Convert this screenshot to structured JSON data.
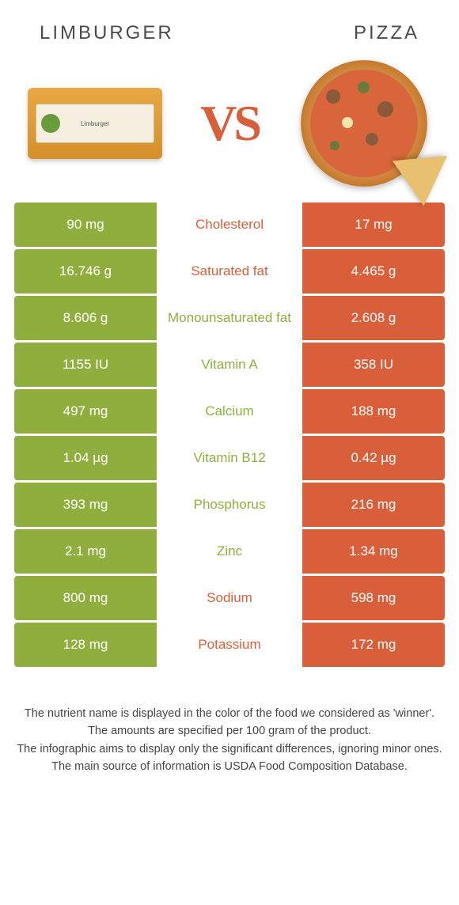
{
  "header": {
    "left_title": "LIMBURGER",
    "right_title": "PIZZA"
  },
  "hero": {
    "vs_text": "VS",
    "limburger_label": "Limburger"
  },
  "colors": {
    "green": "#8fae3e",
    "orange": "#d95f3b",
    "vs_color": "#d95f3b"
  },
  "rows": [
    {
      "nutrient": "Cholesterol",
      "left_val": "90 mg",
      "right_val": "17 mg",
      "winner": "left",
      "label_color": "#d95f3b"
    },
    {
      "nutrient": "Saturated fat",
      "left_val": "16.746 g",
      "right_val": "4.465 g",
      "winner": "left",
      "label_color": "#d95f3b"
    },
    {
      "nutrient": "Monounsaturated fat",
      "left_val": "8.606 g",
      "right_val": "2.608 g",
      "winner": "left",
      "label_color": "#8fae3e"
    },
    {
      "nutrient": "Vitamin A",
      "left_val": "1155 IU",
      "right_val": "358 IU",
      "winner": "left",
      "label_color": "#8fae3e"
    },
    {
      "nutrient": "Calcium",
      "left_val": "497 mg",
      "right_val": "188 mg",
      "winner": "left",
      "label_color": "#8fae3e"
    },
    {
      "nutrient": "Vitamin B12",
      "left_val": "1.04 µg",
      "right_val": "0.42 µg",
      "winner": "left",
      "label_color": "#8fae3e"
    },
    {
      "nutrient": "Phosphorus",
      "left_val": "393 mg",
      "right_val": "216 mg",
      "winner": "left",
      "label_color": "#8fae3e"
    },
    {
      "nutrient": "Zinc",
      "left_val": "2.1 mg",
      "right_val": "1.34 mg",
      "winner": "left",
      "label_color": "#8fae3e"
    },
    {
      "nutrient": "Sodium",
      "left_val": "800 mg",
      "right_val": "598 mg",
      "winner": "left",
      "label_color": "#d95f3b"
    },
    {
      "nutrient": "Potassium",
      "left_val": "128 mg",
      "right_val": "172 mg",
      "winner": "right",
      "label_color": "#d95f3b"
    }
  ],
  "footer": {
    "line1": "The nutrient name is displayed in the color of the food we considered as 'winner'.",
    "line2": "The amounts are specified per 100 gram of the product.",
    "line3": "The infographic aims to display only the significant differences, ignoring minor ones.",
    "line4": "The main source of information is USDA Food Composition Database."
  }
}
